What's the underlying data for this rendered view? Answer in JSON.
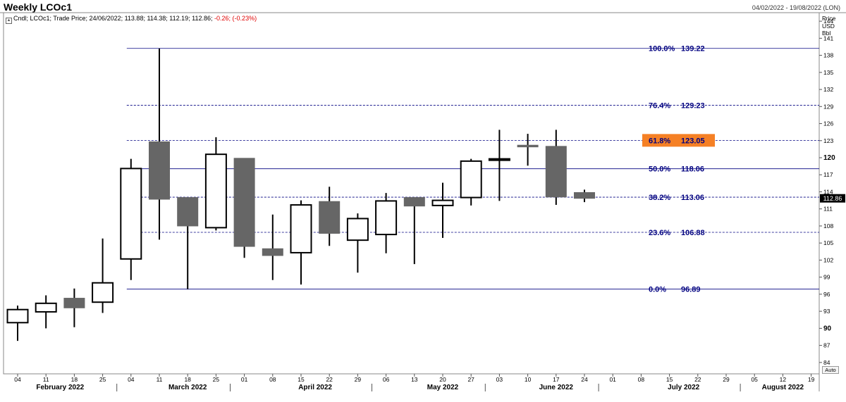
{
  "title": "Weekly LCOc1",
  "date_range": "04/02/2022 - 19/08/2022 (LON)",
  "legend": {
    "prefix": "Cndl; LCOc1; Trade Price; 24/06/2022; 113.88; 114.38; 112.19; 112.86;",
    "change": "-0.26; (-0.23%)"
  },
  "axis_units": [
    "Price",
    "USD",
    "Bbl"
  ],
  "auto_label": "Auto",
  "last_price_label": "112.86",
  "colors": {
    "fib_line": "#000080",
    "fib_text": "#000080",
    "bear_fill": "#666666",
    "bull_fill": "#ffffff",
    "highlight": "#f58025",
    "last_price_bg": "#000000"
  },
  "chart_data": {
    "type": "candlestick",
    "title": "Weekly LCOc1",
    "ylim": [
      82,
      145.5
    ],
    "y_ticks": [
      84,
      87,
      90,
      93,
      96,
      99,
      102,
      105,
      108,
      111,
      114,
      117,
      120,
      123,
      126,
      129,
      132,
      135,
      138,
      141,
      144
    ],
    "y_bold_ticks": [
      90,
      120
    ],
    "x_tick_labels": [
      "04",
      "11",
      "18",
      "25",
      "04",
      "11",
      "18",
      "25",
      "01",
      "08",
      "15",
      "22",
      "29",
      "06",
      "13",
      "20",
      "27",
      "03",
      "10",
      "17",
      "24",
      "01",
      "08",
      "15",
      "22",
      "29",
      "05",
      "12",
      "19"
    ],
    "month_labels": [
      {
        "label": "February 2022",
        "at": 1.5
      },
      {
        "label": "March 2022",
        "at": 6
      },
      {
        "label": "April 2022",
        "at": 10.5
      },
      {
        "label": "May 2022",
        "at": 15
      },
      {
        "label": "June 2022",
        "at": 19
      },
      {
        "label": "July 2022",
        "at": 23.5
      },
      {
        "label": "August 2022",
        "at": 27
      }
    ],
    "month_dividers": [
      3.5,
      7.5,
      12.5,
      16.5,
      20.5,
      25.5
    ],
    "candles": [
      {
        "week": "04/02/2022",
        "open": 91.0,
        "high": 94.0,
        "low": 87.8,
        "close": 93.3
      },
      {
        "week": "11/02/2022",
        "open": 92.9,
        "high": 95.8,
        "low": 90.0,
        "close": 94.4
      },
      {
        "week": "18/02/2022",
        "open": 95.3,
        "high": 97.0,
        "low": 90.2,
        "close": 93.6
      },
      {
        "week": "25/02/2022",
        "open": 94.6,
        "high": 105.8,
        "low": 92.7,
        "close": 98.0
      },
      {
        "week": "04/03/2022",
        "open": 102.2,
        "high": 119.8,
        "low": 98.5,
        "close": 118.1
      },
      {
        "week": "11/03/2022",
        "open": 122.8,
        "high": 139.2,
        "low": 105.6,
        "close": 112.7
      },
      {
        "week": "18/03/2022",
        "open": 113.0,
        "high": 113.0,
        "low": 96.9,
        "close": 108.0
      },
      {
        "week": "25/03/2022",
        "open": 107.7,
        "high": 123.6,
        "low": 107.2,
        "close": 120.6
      },
      {
        "week": "01/04/2022",
        "open": 119.9,
        "high": 119.9,
        "low": 102.4,
        "close": 104.4
      },
      {
        "week": "08/04/2022",
        "open": 104.0,
        "high": 110.0,
        "low": 98.5,
        "close": 102.8
      },
      {
        "week": "15/04/2022",
        "open": 103.3,
        "high": 112.5,
        "low": 97.7,
        "close": 111.7
      },
      {
        "week": "22/04/2022",
        "open": 112.3,
        "high": 114.9,
        "low": 104.5,
        "close": 106.7
      },
      {
        "week": "29/04/2022",
        "open": 105.5,
        "high": 110.2,
        "low": 99.8,
        "close": 109.3
      },
      {
        "week": "06/05/2022",
        "open": 106.5,
        "high": 113.8,
        "low": 103.2,
        "close": 112.4
      },
      {
        "week": "13/05/2022",
        "open": 113.0,
        "high": 113.0,
        "low": 101.3,
        "close": 111.5
      },
      {
        "week": "20/05/2022",
        "open": 111.6,
        "high": 115.6,
        "low": 105.9,
        "close": 112.5
      },
      {
        "week": "27/05/2022",
        "open": 113.0,
        "high": 119.8,
        "low": 111.6,
        "close": 119.4
      },
      {
        "week": "03/06/2022",
        "open": 119.6,
        "high": 124.9,
        "low": 112.4,
        "close": 119.8
      },
      {
        "week": "10/06/2022",
        "open": 122.2,
        "high": 124.2,
        "low": 118.6,
        "close": 121.9
      },
      {
        "week": "17/06/2022",
        "open": 122.0,
        "high": 124.9,
        "low": 111.7,
        "close": 113.1
      },
      {
        "week": "24/06/2022",
        "open": 113.88,
        "high": 114.38,
        "low": 112.19,
        "close": 112.86
      }
    ],
    "fibonacci": [
      {
        "label": "100.0%",
        "value": 139.22,
        "value_text": "139.22",
        "style": "solid"
      },
      {
        "label": "76.4%",
        "value": 129.23,
        "value_text": "129.23",
        "style": "dashed"
      },
      {
        "label": "61.8%",
        "value": 123.05,
        "value_text": "123.05",
        "style": "dashed",
        "highlight": true
      },
      {
        "label": "50.0%",
        "value": 118.06,
        "value_text": "118.06",
        "style": "solid"
      },
      {
        "label": "38.2%",
        "value": 113.06,
        "value_text": "113.06",
        "style": "dashed"
      },
      {
        "label": "23.6%",
        "value": 106.88,
        "value_text": "106.88",
        "style": "dashed"
      },
      {
        "label": "0.0%",
        "value": 96.89,
        "value_text": "96.89",
        "style": "solid"
      }
    ],
    "last_price": 112.86
  }
}
